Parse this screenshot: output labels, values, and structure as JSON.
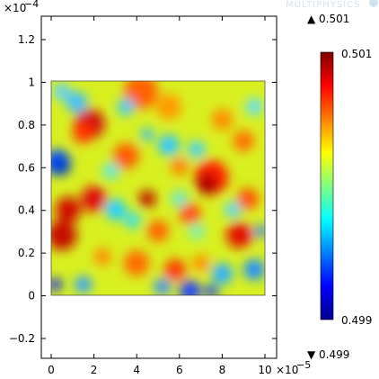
{
  "watermark": "MULTIPHYSICS",
  "x_axis": {
    "ticks": [
      "0",
      "2",
      "4",
      "6",
      "8",
      "10"
    ],
    "multiplier_base": "×10",
    "multiplier_exp": "−5"
  },
  "y_axis": {
    "ticks": [
      "1.2",
      "1",
      "0.8",
      "0.6",
      "0.4",
      "0.2",
      "0",
      "−0.2"
    ],
    "multiplier_base": "×10",
    "multiplier_exp": "−4"
  },
  "range_max_label": "▲ 0.501",
  "range_min_label": "▼ 0.499",
  "colorbar": {
    "max_label": "0.501",
    "min_label": "0.499",
    "colors": [
      "#00008f",
      "#0000ff",
      "#00ffff",
      "#ffff00",
      "#ff0000",
      "#800000"
    ]
  },
  "field": {
    "colormap": "jet",
    "min": 0.499,
    "max": 0.501
  }
}
